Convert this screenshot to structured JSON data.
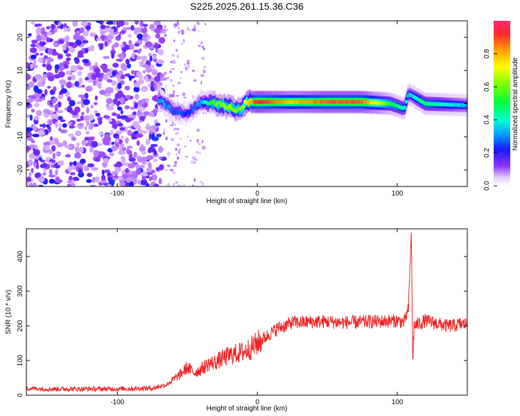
{
  "chart_data": [
    {
      "type": "heatmap",
      "title": "S225.2025.261.15.36.C36",
      "xlabel": "Height of straight line (km)",
      "ylabel": "Frequency (Hz)",
      "xlim": [
        -165,
        150
      ],
      "ylim": [
        -25,
        25
      ],
      "xticks": [
        -100,
        0,
        100
      ],
      "yticks": [
        -20,
        -10,
        0,
        10,
        20
      ],
      "xtick_labels": [
        "-100",
        "0",
        "100"
      ],
      "ytick_labels": [
        "-20",
        "-10",
        "0",
        "10",
        "20"
      ],
      "colorbar": {
        "label": "Normalized spectral amplitude",
        "range": [
          0,
          1
        ],
        "ticks": [
          0.0,
          0.2,
          0.4,
          0.6,
          0.8
        ],
        "tick_labels": [
          "0.0",
          "0.2",
          "0.4",
          "0.6",
          "0.8"
        ]
      },
      "description_points": {
        "noise_region_x": [
          -165,
          -67
        ],
        "signal_track": [
          {
            "x": -70,
            "freq": 1.0,
            "amp": 0.3
          },
          {
            "x": -60,
            "freq": -2.0,
            "amp": 0.25
          },
          {
            "x": -50,
            "freq": -3.0,
            "amp": 0.2
          },
          {
            "x": -40,
            "freq": 0.5,
            "amp": 0.3
          },
          {
            "x": -30,
            "freq": 0.0,
            "amp": 0.55
          },
          {
            "x": -20,
            "freq": -1.0,
            "amp": 0.6
          },
          {
            "x": -12,
            "freq": -2.0,
            "amp": 0.55
          },
          {
            "x": -8,
            "freq": 0.5,
            "amp": 0.7
          },
          {
            "x": 0,
            "freq": 0.5,
            "amp": 0.9
          },
          {
            "x": 25,
            "freq": 0.5,
            "amp": 0.75
          },
          {
            "x": 50,
            "freq": 0.5,
            "amp": 0.85
          },
          {
            "x": 75,
            "freq": 0.5,
            "amp": 0.85
          },
          {
            "x": 95,
            "freq": 0.0,
            "amp": 0.5
          },
          {
            "x": 105,
            "freq": -1.5,
            "amp": 0.4
          },
          {
            "x": 108,
            "freq": 3.0,
            "amp": 0.3
          },
          {
            "x": 120,
            "freq": 0.0,
            "amp": 0.45
          },
          {
            "x": 150,
            "freq": -0.5,
            "amp": 0.3
          }
        ]
      }
    },
    {
      "type": "line",
      "xlabel": "Height of straight line (km)",
      "ylabel": "SNR (10 * v/v)",
      "xlim": [
        -165,
        150
      ],
      "ylim": [
        0,
        480
      ],
      "xticks": [
        -100,
        0,
        100
      ],
      "yticks": [
        0,
        100,
        200,
        300,
        400
      ],
      "xtick_labels": [
        "-100",
        "0",
        "100"
      ],
      "ytick_labels": [
        "0",
        "100",
        "200",
        "300",
        "400"
      ],
      "series": [
        {
          "name": "SNR",
          "color": "#ee2222",
          "x": [
            -165,
            -150,
            -130,
            -110,
            -90,
            -75,
            -65,
            -60,
            -55,
            -50,
            -45,
            -40,
            -35,
            -30,
            -25,
            -20,
            -15,
            -10,
            -5,
            0,
            5,
            10,
            15,
            20,
            25,
            30,
            40,
            50,
            60,
            70,
            80,
            90,
            100,
            105,
            108,
            110,
            111,
            112,
            115,
            120,
            125,
            130,
            135,
            140,
            145,
            150
          ],
          "values": [
            20,
            18,
            18,
            18,
            19,
            20,
            30,
            45,
            60,
            80,
            65,
            75,
            90,
            95,
            105,
            115,
            120,
            125,
            135,
            150,
            165,
            180,
            195,
            200,
            210,
            210,
            212,
            212,
            210,
            210,
            212,
            213,
            215,
            210,
            250,
            480,
            100,
            200,
            205,
            215,
            210,
            205,
            200,
            200,
            205,
            205
          ]
        }
      ]
    }
  ]
}
